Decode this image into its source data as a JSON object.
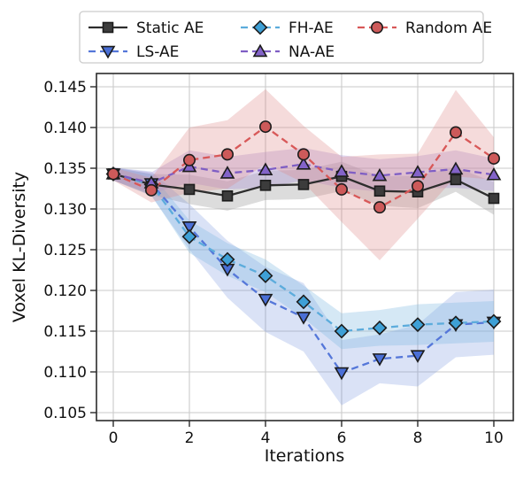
{
  "figure": {
    "background": "#ffffff"
  },
  "colors": {
    "grid": "#cacaca",
    "spine": "#2b2b2b",
    "tick": "#2b2b2b",
    "text": "#111111",
    "legend_border": "#cccccc",
    "legend_background": "#ffffff",
    "marker_edge": "#1c1c1c"
  },
  "chart_data": {
    "type": "line",
    "title": "",
    "xlabel": "Iterations",
    "ylabel": "Voxel KL-Diversity",
    "x": [
      0,
      1,
      2,
      3,
      4,
      5,
      6,
      7,
      8,
      9,
      10
    ],
    "x_tick_labels": [
      "0",
      "2",
      "4",
      "6",
      "8",
      "10"
    ],
    "y_tick_labels": [
      "0.105",
      "0.110",
      "0.115",
      "0.120",
      "0.125",
      "0.130",
      "0.135",
      "0.140",
      "0.145"
    ],
    "xlim": [
      -0.45,
      10.5
    ],
    "ylim": [
      0.104,
      0.1466
    ],
    "grid": true,
    "legend_position": "upper center, 3 columns, 2 rows",
    "series": [
      {
        "name": "Static AE",
        "line_color": "#2d2d2d",
        "line_style": "solid",
        "marker": "square",
        "marker_fill": "#3c3c3c",
        "band_color": "#8a8a8a",
        "band_alpha": 0.3,
        "values": [
          0.1343,
          0.133,
          0.1324,
          0.1316,
          0.1329,
          0.133,
          0.134,
          0.1322,
          0.1321,
          0.1336,
          0.1313
        ],
        "band_lower": [
          0.1335,
          0.1317,
          0.1306,
          0.1298,
          0.1311,
          0.1312,
          0.1322,
          0.1304,
          0.1301,
          0.1321,
          0.1293
        ],
        "band_upper": [
          0.1351,
          0.1343,
          0.1342,
          0.1334,
          0.1347,
          0.1348,
          0.1358,
          0.134,
          0.1341,
          0.1351,
          0.1333
        ]
      },
      {
        "name": "LS-AE",
        "line_color": "#5577d9",
        "line_style": "dashed",
        "marker": "triangle-down",
        "marker_fill": "#4a6fd6",
        "band_color": "#7b96e0",
        "band_alpha": 0.28,
        "values": [
          0.1343,
          0.1331,
          0.1278,
          0.1226,
          0.1189,
          0.1167,
          0.1099,
          0.1116,
          0.112,
          0.1158,
          0.1161
        ],
        "band_lower": [
          0.1335,
          0.1316,
          0.125,
          0.1191,
          0.1149,
          0.1125,
          0.1059,
          0.1086,
          0.1082,
          0.1118,
          0.1121
        ],
        "band_upper": [
          0.1351,
          0.1346,
          0.1306,
          0.1261,
          0.1229,
          0.1209,
          0.1139,
          0.1146,
          0.1158,
          0.1198,
          0.1201
        ]
      },
      {
        "name": "FH-AE",
        "line_color": "#5cacdc",
        "line_style": "dashed",
        "marker": "diamond",
        "marker_fill": "#3ea0d6",
        "band_color": "#7db8e0",
        "band_alpha": 0.32,
        "values": [
          0.1343,
          0.133,
          0.1266,
          0.1238,
          0.1218,
          0.1186,
          0.115,
          0.1154,
          0.1158,
          0.116,
          0.1162
        ],
        "band_lower": [
          0.1335,
          0.1317,
          0.1246,
          0.1218,
          0.1198,
          0.1166,
          0.1128,
          0.1132,
          0.1133,
          0.1135,
          0.1137
        ],
        "band_upper": [
          0.1351,
          0.1343,
          0.1286,
          0.1258,
          0.1238,
          0.1206,
          0.1172,
          0.1176,
          0.1183,
          0.1185,
          0.1187
        ]
      },
      {
        "name": "NA-AE",
        "line_color": "#7f5ec4",
        "line_style": "dashed",
        "marker": "triangle-up",
        "marker_fill": "#8363c8",
        "band_color": "#a98fd4",
        "band_alpha": 0.35,
        "values": [
          0.1343,
          0.1332,
          0.1352,
          0.1344,
          0.1348,
          0.1355,
          0.1346,
          0.1341,
          0.1345,
          0.1349,
          0.1342
        ],
        "band_lower": [
          0.1335,
          0.1319,
          0.1332,
          0.1324,
          0.1326,
          0.1335,
          0.1326,
          0.1321,
          0.1325,
          0.1326,
          0.1322
        ],
        "band_upper": [
          0.1351,
          0.1345,
          0.1372,
          0.1364,
          0.137,
          0.1375,
          0.1366,
          0.1361,
          0.1365,
          0.1372,
          0.1362
        ]
      },
      {
        "name": "Random AE",
        "line_color": "#d85858",
        "line_style": "dashed",
        "marker": "circle",
        "marker_fill": "#cd5a5a",
        "band_color": "#dd8888",
        "band_alpha": 0.3,
        "values": [
          0.1343,
          0.1323,
          0.136,
          0.1367,
          0.1401,
          0.1367,
          0.1324,
          0.1302,
          0.1328,
          0.1394,
          0.1362
        ],
        "band_lower": [
          0.1335,
          0.1308,
          0.132,
          0.1325,
          0.1355,
          0.1332,
          0.1284,
          0.1237,
          0.1288,
          0.134,
          0.1336
        ],
        "band_upper": [
          0.1351,
          0.1338,
          0.14,
          0.1409,
          0.1447,
          0.1402,
          0.1364,
          0.1367,
          0.1368,
          0.1446,
          0.1388
        ]
      }
    ]
  }
}
